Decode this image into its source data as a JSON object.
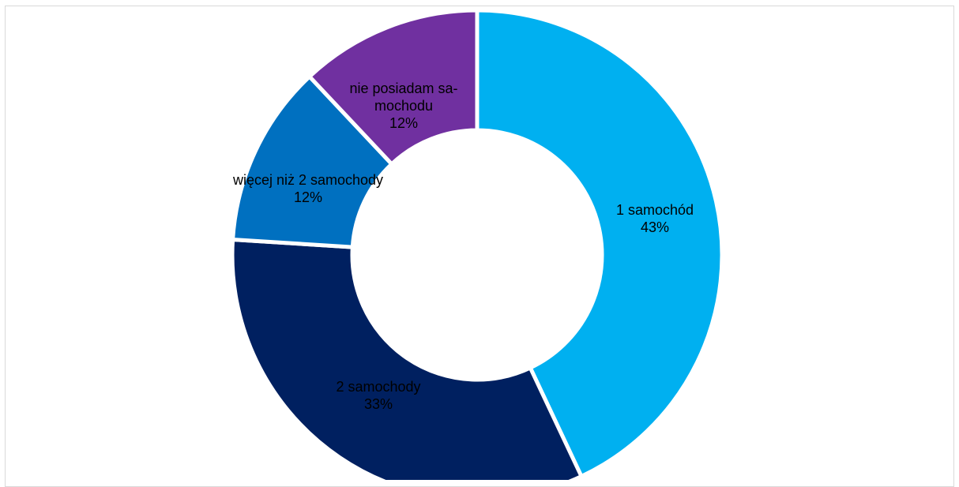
{
  "chart_data": {
    "type": "pie",
    "donut": true,
    "title": "",
    "slices": [
      {
        "label": [
          "1 samochód"
        ],
        "value": 43,
        "percent_label": "43%",
        "color": "#00B0F0"
      },
      {
        "label": [
          "2 samochody"
        ],
        "value": 33,
        "percent_label": "33%",
        "color": "#002060"
      },
      {
        "label": [
          "więcej niż 2 samochody"
        ],
        "value": 12,
        "percent_label": "12%",
        "color": "#0070C0"
      },
      {
        "label": [
          "nie posiadam sa-",
          "mochodu"
        ],
        "value": 12,
        "percent_label": "12%",
        "color": "#7030A0"
      }
    ],
    "legend": "none",
    "separator_color": "#FFFFFF"
  }
}
